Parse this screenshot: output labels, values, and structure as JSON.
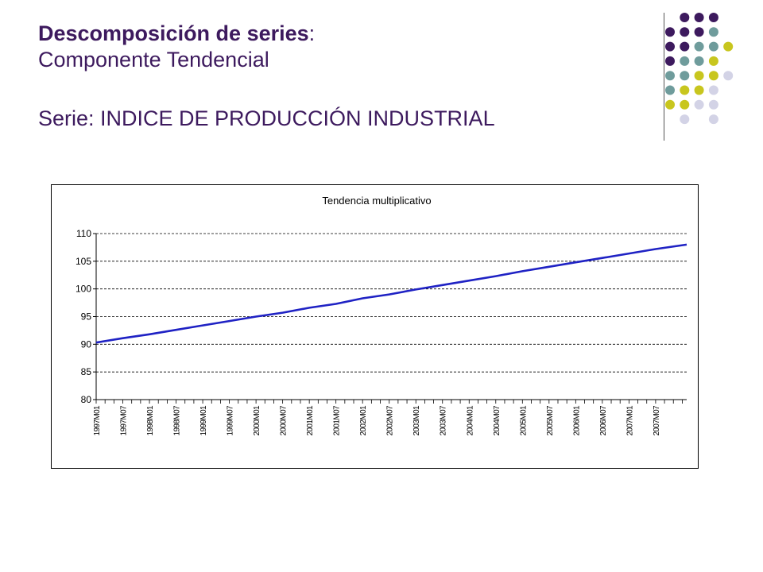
{
  "slide": {
    "heading_bold": "Descomposición de series",
    "heading_colon": ":",
    "subheading": "Componente Tendencial",
    "series_line": "Serie: INDICE DE PRODUCCIÓN INDUSTRIAL"
  },
  "colors": {
    "title_text": "#3d1a5e",
    "dot_purple": "#3d1a5e",
    "dot_teal": "#6f9c9c",
    "dot_olive": "#c8c61e",
    "dot_lavender": "#d3d3e6",
    "line": "#1f22c4"
  },
  "decoration": {
    "dot_grid": [
      [
        null,
        "purple",
        "purple",
        "purple",
        null
      ],
      [
        "purple",
        "purple",
        "purple",
        "teal",
        null
      ],
      [
        "purple",
        "purple",
        "teal",
        "teal",
        "olive"
      ],
      [
        "purple",
        "teal",
        "teal",
        "olive",
        null
      ],
      [
        "teal",
        "teal",
        "olive",
        "olive",
        "lavender"
      ],
      [
        "teal",
        "olive",
        "olive",
        "lavender",
        null
      ],
      [
        "olive",
        "olive",
        "lavender",
        "lavender",
        null
      ],
      [
        null,
        "lavender",
        null,
        "lavender",
        null
      ]
    ]
  },
  "chart_data": {
    "type": "line",
    "title": "Tendencia multiplicativo",
    "xlabel": "",
    "ylabel": "",
    "ylim": [
      80,
      110
    ],
    "yticks": [
      80,
      85,
      90,
      95,
      100,
      105,
      110
    ],
    "grid": "horizontal-dashed",
    "legend": "none",
    "xtick_labels": [
      "1997M01",
      "1997M07",
      "1998M01",
      "1998M07",
      "1999M01",
      "1999M07",
      "2000M01",
      "2000M07",
      "2001M01",
      "2001M07",
      "2002M01",
      "2002M07",
      "2003M01",
      "2003M07",
      "2004M01",
      "2004M07",
      "2005M01",
      "2005M07",
      "2006M01",
      "2006M07",
      "2007M01",
      "2007M07"
    ],
    "x_period_start": "1997M01",
    "x_period_end": "2008M02",
    "series": [
      {
        "values_by_tick": [
          90.3,
          91.1,
          91.8,
          92.6,
          93.4,
          94.2,
          95.0,
          95.7,
          96.6,
          97.3,
          98.3,
          99.0,
          99.9,
          100.7,
          101.5,
          102.3,
          103.2,
          104.0,
          104.8,
          105.6,
          106.4,
          107.2
        ],
        "value_at_end": 108.0
      }
    ]
  }
}
